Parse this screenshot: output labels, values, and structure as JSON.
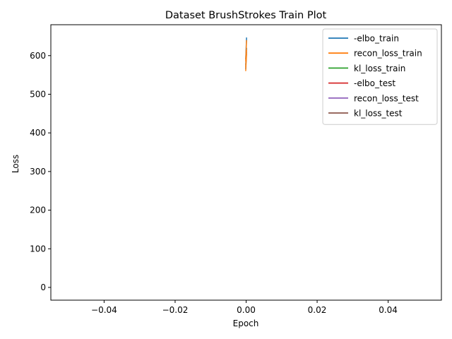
{
  "chart_data": {
    "type": "line",
    "title": "Dataset BrushStrokes Train Plot",
    "xlabel": "Epoch",
    "ylabel": "Loss",
    "xlim": [
      -0.055,
      0.055
    ],
    "ylim": [
      -33,
      680
    ],
    "xticks": [
      -0.04,
      -0.02,
      0.0,
      0.02,
      0.04
    ],
    "xtick_labels": [
      "−0.04",
      "−0.02",
      "0.00",
      "0.02",
      "0.04"
    ],
    "yticks": [
      0,
      100,
      200,
      300,
      400,
      500,
      600
    ],
    "ytick_labels": [
      "0",
      "100",
      "200",
      "300",
      "400",
      "500",
      "600"
    ],
    "grid": false,
    "legend_position": "top-right",
    "series": [
      {
        "name": "-elbo_train",
        "color": "#1f77b4",
        "x": [
          0,
          0,
          0,
          0,
          0,
          0
        ],
        "y": [
          647,
          590,
          620,
          575,
          610,
          565
        ]
      },
      {
        "name": "recon_loss_train",
        "color": "#ff7f0e",
        "x": [
          0,
          0,
          0,
          0,
          0,
          0
        ],
        "y": [
          640,
          585,
          615,
          570,
          605,
          560
        ]
      },
      {
        "name": "kl_loss_train",
        "color": "#2ca02c",
        "x": [],
        "y": []
      },
      {
        "name": "-elbo_test",
        "color": "#d62728",
        "x": [],
        "y": []
      },
      {
        "name": "recon_loss_test",
        "color": "#9467bd",
        "x": [],
        "y": []
      },
      {
        "name": "kl_loss_test",
        "color": "#8c564b",
        "x": [],
        "y": []
      }
    ]
  }
}
